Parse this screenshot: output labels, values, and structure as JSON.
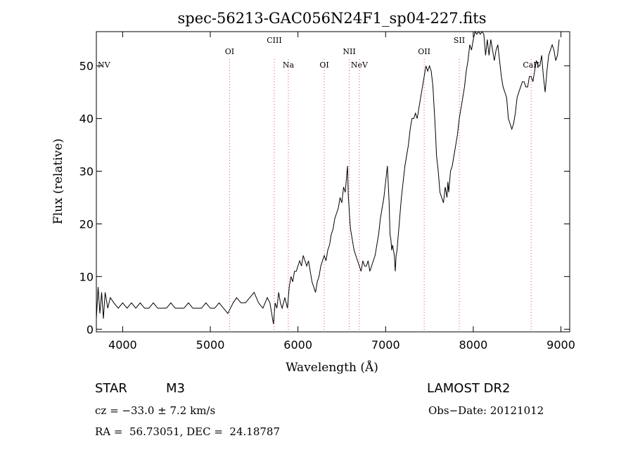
{
  "chart_data": {
    "type": "line",
    "title": "spec-56213-GAC056N24F1_sp04-227.fits",
    "xlabel": "Wavelength (Å)",
    "ylabel": "Flux (relative)",
    "xlim": [
      3700,
      9100
    ],
    "ylim": [
      -0.5,
      56.5
    ],
    "xticks": [
      4000,
      5000,
      6000,
      7000,
      8000,
      9000
    ],
    "yticks": [
      0,
      10,
      20,
      30,
      40,
      50
    ],
    "grid": false,
    "line_color": "#000000",
    "marker_color": "#e34a4a",
    "series": [
      {
        "x": [
          3700,
          3720,
          3740,
          3760,
          3780,
          3800,
          3830,
          3860,
          3900,
          3950,
          4000,
          4050,
          4100,
          4150,
          4200,
          4250,
          4300,
          4350,
          4400,
          4450,
          4500,
          4550,
          4600,
          4650,
          4700,
          4750,
          4800,
          4850,
          4900,
          4950,
          5000,
          5050,
          5100,
          5150,
          5200,
          5230,
          5260,
          5300,
          5350,
          5400,
          5450,
          5500,
          5550,
          5600,
          5650,
          5680,
          5700,
          5720,
          5740,
          5760,
          5780,
          5800,
          5820,
          5850,
          5880,
          5900,
          5920,
          5940,
          5960,
          5980,
          6000,
          6020,
          6040,
          6060,
          6080,
          6100,
          6120,
          6140,
          6160,
          6180,
          6200,
          6220,
          6240,
          6260,
          6280,
          6300,
          6320,
          6340,
          6360,
          6380,
          6400,
          6420,
          6440,
          6460,
          6480,
          6500,
          6520,
          6540,
          6560,
          6565,
          6570,
          6575,
          6580,
          6590,
          6600,
          6620,
          6640,
          6660,
          6680,
          6700,
          6720,
          6740,
          6760,
          6780,
          6800,
          6820,
          6840,
          6860,
          6880,
          6900,
          6920,
          6940,
          6960,
          6980,
          7000,
          7020,
          7040,
          7050,
          7060,
          7070,
          7080,
          7090,
          7100,
          7110,
          7120,
          7130,
          7140,
          7150,
          7160,
          7180,
          7200,
          7220,
          7240,
          7260,
          7280,
          7300,
          7320,
          7340,
          7360,
          7380,
          7400,
          7420,
          7440,
          7460,
          7480,
          7500,
          7520,
          7540,
          7550,
          7560,
          7570,
          7580,
          7600,
          7620,
          7640,
          7660,
          7680,
          7700,
          7710,
          7720,
          7730,
          7740,
          7760,
          7780,
          7800,
          7820,
          7840,
          7860,
          7880,
          7900,
          7920,
          7940,
          7960,
          7980,
          8000,
          8020,
          8040,
          8060,
          8080,
          8100,
          8120,
          8140,
          8160,
          8180,
          8200,
          8220,
          8240,
          8260,
          8280,
          8300,
          8320,
          8340,
          8360,
          8380,
          8400,
          8420,
          8440,
          8460,
          8480,
          8500,
          8520,
          8540,
          8560,
          8580,
          8600,
          8620,
          8640,
          8660,
          8680,
          8700,
          8720,
          8740,
          8760,
          8780,
          8800,
          8820,
          8840,
          8860,
          8880,
          8900,
          8920,
          8940,
          8960,
          8980
        ],
        "y": [
          2,
          8,
          3,
          7,
          2,
          7,
          4,
          6,
          5,
          4,
          5,
          4,
          5,
          4,
          5,
          4,
          4,
          5,
          4,
          4,
          4,
          5,
          4,
          4,
          4,
          5,
          4,
          4,
          4,
          5,
          4,
          4,
          5,
          4,
          3,
          4,
          5,
          6,
          5,
          5,
          6,
          7,
          5,
          4,
          6,
          5,
          3,
          1,
          5,
          4,
          7,
          5,
          4,
          6,
          4,
          8,
          10,
          9,
          11,
          11,
          12,
          13,
          12,
          14,
          13,
          12,
          13,
          11,
          9,
          8,
          7,
          9,
          10,
          12,
          13,
          14,
          13,
          15,
          16,
          18,
          19,
          21,
          22,
          23,
          25,
          24,
          27,
          26,
          30,
          31,
          28,
          25,
          24,
          21,
          19,
          17,
          15,
          14,
          13,
          12,
          11,
          13,
          12,
          12,
          13,
          11,
          12,
          13,
          14,
          16,
          18,
          21,
          23,
          25,
          28,
          31,
          24,
          18,
          17,
          15,
          16,
          15,
          14,
          11,
          14,
          15,
          17,
          19,
          21,
          25,
          28,
          31,
          33,
          35,
          38,
          40,
          40,
          41,
          40,
          42,
          44,
          46,
          48,
          50,
          49,
          50,
          49,
          46,
          43,
          40,
          37,
          33,
          30,
          26,
          25,
          24,
          27,
          25,
          28,
          26,
          28,
          30,
          31,
          33,
          35,
          37,
          40,
          42,
          44,
          46,
          49,
          51,
          54,
          53,
          55,
          57,
          56,
          57,
          56,
          57,
          56,
          52,
          55,
          52,
          55,
          53,
          51,
          53,
          54,
          51,
          48,
          46,
          45,
          44,
          40,
          39,
          38,
          39,
          41,
          44,
          45,
          46,
          47,
          47,
          46,
          46,
          48,
          48,
          47,
          49,
          51,
          50,
          50,
          52,
          48,
          45,
          49,
          52,
          53,
          54,
          53,
          51,
          52,
          55
        ]
      }
    ],
    "lines": [
      {
        "label": "NV",
        "x": 3700
      },
      {
        "label": "OI",
        "x": 5220
      },
      {
        "label": "CIII",
        "x": 5730
      },
      {
        "label": "Na",
        "x": 5890
      },
      {
        "label": "OI",
        "x": 6300
      },
      {
        "label": "NII",
        "x": 6585
      },
      {
        "label": "NeV",
        "x": 6700
      },
      {
        "label": "OII",
        "x": 7440
      },
      {
        "label": "SII",
        "x": 7840
      },
      {
        "label": "CaII",
        "x": 8660
      }
    ]
  },
  "info": {
    "object_type": "STAR",
    "subclass": "M3",
    "survey": "LAMOST DR2",
    "cz": "cz = −33.0 ± 7.2 km/s",
    "obs_date": "Obs−Date: 20121012",
    "radec": "RA =  56.73051, DEC =  24.18787"
  }
}
